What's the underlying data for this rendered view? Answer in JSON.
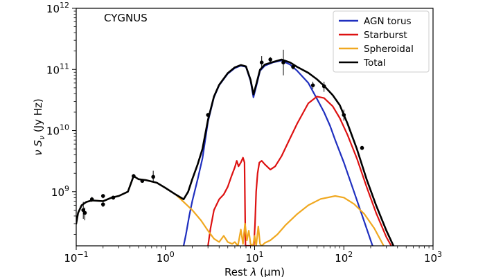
{
  "chart_data": {
    "type": "line",
    "title": "",
    "annotation": "CYGNUS",
    "xlabel": "Rest λ (μm)",
    "xlabel_prefix": "Rest ",
    "xlabel_lambda": "λ",
    "xlabel_unit": "(μm)",
    "ylabel": "ν Sν (Jy Hz)",
    "ylabel_nu": "ν S",
    "ylabel_sub": "ν",
    "ylabel_unit": " (Jy Hz)",
    "x_scale": "log",
    "y_scale": "log",
    "xlim": [
      0.1,
      1000
    ],
    "ylim": [
      130000000.0,
      1000000000000.0
    ],
    "x_ticks": [
      {
        "value": 0.1,
        "base": "10",
        "exp": "−1"
      },
      {
        "value": 1,
        "base": "10",
        "exp": "0"
      },
      {
        "value": 10,
        "base": "10",
        "exp": "1"
      },
      {
        "value": 100,
        "base": "10",
        "exp": "2"
      },
      {
        "value": 1000,
        "base": "10",
        "exp": "3"
      }
    ],
    "y_ticks": [
      {
        "value": 1000000000.0,
        "base": "10",
        "exp": "9"
      },
      {
        "value": 10000000000.0,
        "base": "10",
        "exp": "10"
      },
      {
        "value": 100000000000.0,
        "base": "10",
        "exp": "11"
      },
      {
        "value": 1000000000000.0,
        "base": "10",
        "exp": "12"
      }
    ],
    "legend_position": "top-right",
    "grid": false,
    "series": [
      {
        "name": "AGN torus",
        "color": "#1f2fbf",
        "points": [
          [
            1.6,
            130000000.0
          ],
          [
            1.7,
            200000000.0
          ],
          [
            1.85,
            400000000.0
          ],
          [
            2.0,
            700000000.0
          ],
          [
            2.3,
            1600000000.0
          ],
          [
            2.6,
            3500000000.0
          ],
          [
            3.0,
            14000000000.0
          ],
          [
            3.5,
            35000000000.0
          ],
          [
            4.0,
            55000000000.0
          ],
          [
            5.0,
            85000000000.0
          ],
          [
            6.0,
            105000000000.0
          ],
          [
            7.0,
            115000000000.0
          ],
          [
            8.0,
            110000000000.0
          ],
          [
            9.0,
            65000000000.0
          ],
          [
            9.7,
            35000000000.0
          ],
          [
            10.5,
            55000000000.0
          ],
          [
            11.5,
            95000000000.0
          ],
          [
            13.0,
            115000000000.0
          ],
          [
            16.0,
            130000000000.0
          ],
          [
            20.0,
            140000000000.0
          ],
          [
            25.0,
            120000000000.0
          ],
          [
            30.0,
            95000000000.0
          ],
          [
            40.0,
            60000000000.0
          ],
          [
            50.0,
            33000000000.0
          ],
          [
            60.0,
            20000000000.0
          ],
          [
            70.0,
            12000000000.0
          ],
          [
            80.0,
            7000000000.0
          ],
          [
            100.0,
            3000000000.0
          ],
          [
            130.0,
            1000000000.0
          ],
          [
            170.0,
            320000000.0
          ],
          [
            210.0,
            130000000.0
          ]
        ]
      },
      {
        "name": "Starburst",
        "color": "#dd1111",
        "points": [
          [
            3.0,
            130000000.0
          ],
          [
            3.2,
            250000000.0
          ],
          [
            3.5,
            500000000.0
          ],
          [
            4.0,
            750000000.0
          ],
          [
            4.5,
            900000000.0
          ],
          [
            5.0,
            1200000000.0
          ],
          [
            5.5,
            1800000000.0
          ],
          [
            6.0,
            2500000000.0
          ],
          [
            6.3,
            3200000000.0
          ],
          [
            6.6,
            2600000000.0
          ],
          [
            7.0,
            3000000000.0
          ],
          [
            7.4,
            3600000000.0
          ],
          [
            7.7,
            3000000000.0
          ],
          [
            7.9,
            130000000.0
          ],
          [
            9.8,
            130000000.0
          ],
          [
            10.1,
            300000000.0
          ],
          [
            10.4,
            1000000000.0
          ],
          [
            10.8,
            2000000000.0
          ],
          [
            11.3,
            3000000000.0
          ],
          [
            12.0,
            3200000000.0
          ],
          [
            13.0,
            2800000000.0
          ],
          [
            15.0,
            2300000000.0
          ],
          [
            17.0,
            2600000000.0
          ],
          [
            20.0,
            3800000000.0
          ],
          [
            25.0,
            7500000000.0
          ],
          [
            30.0,
            13000000000.0
          ],
          [
            40.0,
            28000000000.0
          ],
          [
            50.0,
            36000000000.0
          ],
          [
            60.0,
            34000000000.0
          ],
          [
            75.0,
            25000000000.0
          ],
          [
            90.0,
            16000000000.0
          ],
          [
            110.0,
            8500000000.0
          ],
          [
            140.0,
            3500000000.0
          ],
          [
            180.0,
            1200000000.0
          ],
          [
            230.0,
            450000000.0
          ],
          [
            300.0,
            180000000.0
          ],
          [
            340.0,
            130000000.0
          ]
        ]
      },
      {
        "name": "Spheroidal",
        "color": "#f0a820",
        "points": [
          [
            0.1,
            300000000.0
          ],
          [
            0.105,
            450000000.0
          ],
          [
            0.115,
            600000000.0
          ],
          [
            0.13,
            680000000.0
          ],
          [
            0.15,
            720000000.0
          ],
          [
            0.2,
            700000000.0
          ],
          [
            0.25,
            800000000.0
          ],
          [
            0.3,
            850000000.0
          ],
          [
            0.38,
            1000000000.0
          ],
          [
            0.44,
            1800000000.0
          ],
          [
            0.5,
            1600000000.0
          ],
          [
            0.6,
            1550000000.0
          ],
          [
            0.8,
            1400000000.0
          ],
          [
            1.0,
            1150000000.0
          ],
          [
            1.3,
            900000000.0
          ],
          [
            1.6,
            680000000.0
          ],
          [
            2.0,
            500000000.0
          ],
          [
            2.5,
            340000000.0
          ],
          [
            3.0,
            230000000.0
          ],
          [
            3.5,
            170000000.0
          ],
          [
            4.0,
            150000000.0
          ],
          [
            4.5,
            190000000.0
          ],
          [
            5.0,
            150000000.0
          ],
          [
            5.6,
            140000000.0
          ],
          [
            6.0,
            150000000.0
          ],
          [
            6.5,
            130000000.0
          ],
          [
            7.0,
            240000000.0
          ],
          [
            7.4,
            140000000.0
          ],
          [
            7.8,
            300000000.0
          ],
          [
            8.2,
            160000000.0
          ],
          [
            8.6,
            230000000.0
          ],
          [
            9.0,
            140000000.0
          ],
          [
            9.6,
            130000000.0
          ],
          [
            10.0,
            190000000.0
          ],
          [
            10.4,
            130000000.0
          ],
          [
            11.0,
            270000000.0
          ],
          [
            11.5,
            140000000.0
          ],
          [
            12.0,
            130000000.0
          ],
          [
            13.0,
            145000000.0
          ],
          [
            15.0,
            160000000.0
          ],
          [
            18.0,
            200000000.0
          ],
          [
            22.0,
            280000000.0
          ],
          [
            30.0,
            430000000.0
          ],
          [
            40.0,
            600000000.0
          ],
          [
            55.0,
            760000000.0
          ],
          [
            80.0,
            850000000.0
          ],
          [
            100.0,
            800000000.0
          ],
          [
            130.0,
            630000000.0
          ],
          [
            170.0,
            430000000.0
          ],
          [
            220.0,
            250000000.0
          ],
          [
            280.0,
            130000000.0
          ]
        ]
      },
      {
        "name": "Total",
        "color": "#000000",
        "points": [
          [
            0.1,
            300000000.0
          ],
          [
            0.105,
            450000000.0
          ],
          [
            0.115,
            600000000.0
          ],
          [
            0.13,
            680000000.0
          ],
          [
            0.15,
            720000000.0
          ],
          [
            0.2,
            700000000.0
          ],
          [
            0.25,
            800000000.0
          ],
          [
            0.3,
            850000000.0
          ],
          [
            0.38,
            1000000000.0
          ],
          [
            0.44,
            1800000000.0
          ],
          [
            0.5,
            1600000000.0
          ],
          [
            0.6,
            1550000000.0
          ],
          [
            0.8,
            1400000000.0
          ],
          [
            1.0,
            1150000000.0
          ],
          [
            1.3,
            900000000.0
          ],
          [
            1.6,
            750000000.0
          ],
          [
            1.8,
            1000000000.0
          ],
          [
            2.0,
            1600000000.0
          ],
          [
            2.3,
            2800000000.0
          ],
          [
            2.6,
            5000000000.0
          ],
          [
            3.0,
            15000000000.0
          ],
          [
            3.5,
            36000000000.0
          ],
          [
            4.0,
            56000000000.0
          ],
          [
            5.0,
            87000000000.0
          ],
          [
            6.0,
            108000000000.0
          ],
          [
            7.0,
            118000000000.0
          ],
          [
            8.0,
            112000000000.0
          ],
          [
            9.0,
            68000000000.0
          ],
          [
            9.7,
            39000000000.0
          ],
          [
            10.5,
            59000000000.0
          ],
          [
            11.5,
            99000000000.0
          ],
          [
            13.0,
            120000000000.0
          ],
          [
            16.0,
            132000000000.0
          ],
          [
            20.0,
            145000000000.0
          ],
          [
            25.0,
            130000000000.0
          ],
          [
            30.0,
            110000000000.0
          ],
          [
            40.0,
            88000000000.0
          ],
          [
            50.0,
            69000000000.0
          ],
          [
            60.0,
            54000000000.0
          ],
          [
            75.0,
            38000000000.0
          ],
          [
            90.0,
            26000000000.0
          ],
          [
            110.0,
            13000000000.0
          ],
          [
            140.0,
            5000000000.0
          ],
          [
            180.0,
            1600000000.0
          ],
          [
            230.0,
            600000000.0
          ],
          [
            300.0,
            230000000.0
          ],
          [
            360.0,
            130000000.0
          ]
        ]
      }
    ],
    "observed_points": [
      {
        "x": 0.12,
        "y": 500000000.0,
        "yerr_low": 360000000.0,
        "yerr_high": 680000000.0
      },
      {
        "x": 0.125,
        "y": 450000000.0,
        "yerr_low": 340000000.0,
        "yerr_high": 550000000.0
      },
      {
        "x": 0.15,
        "y": 750000000.0,
        "yerr_low": 680000000.0,
        "yerr_high": 820000000.0
      },
      {
        "x": 0.2,
        "y": 850000000.0,
        "yerr_low": 780000000.0,
        "yerr_high": 920000000.0
      },
      {
        "x": 0.2,
        "y": 620000000.0,
        "yerr_low": 560000000.0,
        "yerr_high": 680000000.0
      },
      {
        "x": 0.26,
        "y": 800000000.0,
        "yerr_low": 740000000.0,
        "yerr_high": 860000000.0
      },
      {
        "x": 0.44,
        "y": 1800000000.0,
        "yerr_low": 1700000000.0,
        "yerr_high": 1950000000.0
      },
      {
        "x": 0.55,
        "y": 1500000000.0,
        "yerr_low": 1400000000.0,
        "yerr_high": 1600000000.0
      },
      {
        "x": 0.73,
        "y": 1750000000.0,
        "yerr_low": 1450000000.0,
        "yerr_high": 2200000000.0
      },
      {
        "x": 3.0,
        "y": 18000000000.0,
        "yerr_low": 16500000000.0,
        "yerr_high": 19500000000.0
      },
      {
        "x": 12.0,
        "y": 130000000000.0,
        "yerr_low": 100000000000.0,
        "yerr_high": 165000000000.0
      },
      {
        "x": 15.0,
        "y": 145000000000.0,
        "yerr_low": 130000000000.0,
        "yerr_high": 160000000000.0
      },
      {
        "x": 21.0,
        "y": 130000000000.0,
        "yerr_low": 80000000000.0,
        "yerr_high": 210000000000.0
      },
      {
        "x": 27.0,
        "y": 110000000000.0,
        "yerr_low": 100000000000.0,
        "yerr_high": 120000000000.0
      },
      {
        "x": 45.0,
        "y": 55000000000.0,
        "yerr_low": 48000000000.0,
        "yerr_high": 63000000000.0
      },
      {
        "x": 60.0,
        "y": 53000000000.0,
        "yerr_low": 43000000000.0,
        "yerr_high": 63000000000.0
      },
      {
        "x": 100.0,
        "y": 18000000000.0,
        "yerr_low": 14500000000.0,
        "yerr_high": 22000000000.0
      },
      {
        "x": 160.0,
        "y": 5200000000.0,
        "yerr_low": 4800000000.0,
        "yerr_high": 5600000000.0
      }
    ]
  }
}
